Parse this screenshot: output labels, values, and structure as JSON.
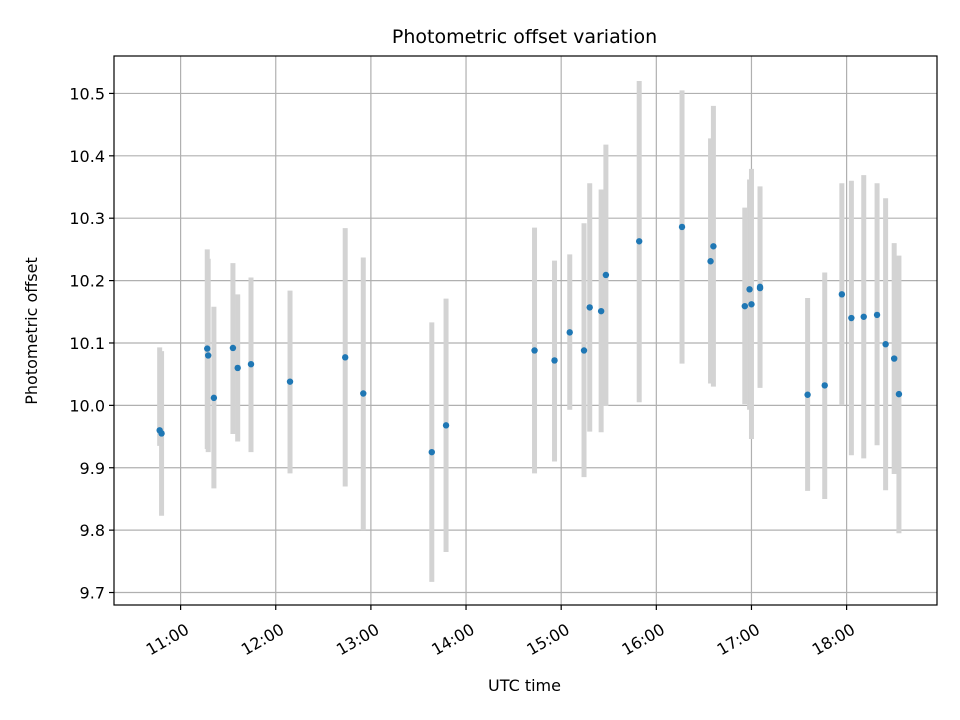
{
  "chart_data": {
    "type": "scatter",
    "title": "Photometric offset variation",
    "xlabel": "UTC time",
    "ylabel": "Photometric offset",
    "x_unit": "hour (UTC)",
    "xlim": [
      10.3,
      18.95
    ],
    "ylim": [
      9.68,
      10.56
    ],
    "x_ticks": [
      11,
      12,
      13,
      14,
      15,
      16,
      17,
      18
    ],
    "x_tick_labels": [
      "11:00",
      "12:00",
      "13:00",
      "14:00",
      "15:00",
      "16:00",
      "17:00",
      "18:00"
    ],
    "y_ticks": [
      9.7,
      9.8,
      9.9,
      10.0,
      10.1,
      10.2,
      10.3,
      10.4,
      10.5
    ],
    "y_tick_labels": [
      "9.7",
      "9.8",
      "9.9",
      "10.0",
      "10.1",
      "10.2",
      "10.3",
      "10.4",
      "10.5"
    ],
    "grid": true,
    "errorbar_color": "#d3d3d3",
    "point_color": "#1f77b4",
    "points": [
      {
        "x": 10.78,
        "y": 9.96,
        "yerr_low": 9.935,
        "yerr_high": 10.093
      },
      {
        "x": 10.8,
        "y": 9.955,
        "yerr_low": 9.823,
        "yerr_high": 10.087
      },
      {
        "x": 11.28,
        "y": 10.091,
        "yerr_low": 9.93,
        "yerr_high": 10.25
      },
      {
        "x": 11.29,
        "y": 10.08,
        "yerr_low": 9.925,
        "yerr_high": 10.235
      },
      {
        "x": 11.35,
        "y": 10.012,
        "yerr_low": 9.867,
        "yerr_high": 10.158
      },
      {
        "x": 11.55,
        "y": 10.092,
        "yerr_low": 9.954,
        "yerr_high": 10.228
      },
      {
        "x": 11.6,
        "y": 10.06,
        "yerr_low": 9.942,
        "yerr_high": 10.178
      },
      {
        "x": 11.74,
        "y": 10.066,
        "yerr_low": 9.925,
        "yerr_high": 10.205
      },
      {
        "x": 12.15,
        "y": 10.038,
        "yerr_low": 9.891,
        "yerr_high": 10.184
      },
      {
        "x": 12.73,
        "y": 10.077,
        "yerr_low": 9.87,
        "yerr_high": 10.284
      },
      {
        "x": 12.92,
        "y": 10.019,
        "yerr_low": 9.8,
        "yerr_high": 10.237
      },
      {
        "x": 13.64,
        "y": 9.925,
        "yerr_low": 9.717,
        "yerr_high": 10.133
      },
      {
        "x": 13.79,
        "y": 9.968,
        "yerr_low": 9.765,
        "yerr_high": 10.171
      },
      {
        "x": 14.72,
        "y": 10.088,
        "yerr_low": 9.891,
        "yerr_high": 10.285
      },
      {
        "x": 14.93,
        "y": 10.072,
        "yerr_low": 9.91,
        "yerr_high": 10.232
      },
      {
        "x": 15.09,
        "y": 10.117,
        "yerr_low": 9.993,
        "yerr_high": 10.242
      },
      {
        "x": 15.24,
        "y": 10.088,
        "yerr_low": 9.885,
        "yerr_high": 10.292
      },
      {
        "x": 15.3,
        "y": 10.157,
        "yerr_low": 9.958,
        "yerr_high": 10.356
      },
      {
        "x": 15.42,
        "y": 10.151,
        "yerr_low": 9.957,
        "yerr_high": 10.346
      },
      {
        "x": 15.47,
        "y": 10.209,
        "yerr_low": 9.999,
        "yerr_high": 10.418
      },
      {
        "x": 15.82,
        "y": 10.263,
        "yerr_low": 10.005,
        "yerr_high": 10.52
      },
      {
        "x": 16.27,
        "y": 10.286,
        "yerr_low": 10.067,
        "yerr_high": 10.505
      },
      {
        "x": 16.57,
        "y": 10.231,
        "yerr_low": 10.035,
        "yerr_high": 10.428
      },
      {
        "x": 16.6,
        "y": 10.255,
        "yerr_low": 10.03,
        "yerr_high": 10.48
      },
      {
        "x": 16.93,
        "y": 10.159,
        "yerr_low": 10.002,
        "yerr_high": 10.317
      },
      {
        "x": 16.98,
        "y": 10.186,
        "yerr_low": 9.993,
        "yerr_high": 10.362
      },
      {
        "x": 17.0,
        "y": 10.162,
        "yerr_low": 9.946,
        "yerr_high": 10.379
      },
      {
        "x": 17.09,
        "y": 10.19,
        "yerr_low": 10.028,
        "yerr_high": 10.351
      },
      {
        "x": 17.09,
        "y": 10.188,
        "yerr_low": 10.03,
        "yerr_high": 10.347
      },
      {
        "x": 17.59,
        "y": 10.017,
        "yerr_low": 9.863,
        "yerr_high": 10.172
      },
      {
        "x": 17.77,
        "y": 10.032,
        "yerr_low": 9.85,
        "yerr_high": 10.213
      },
      {
        "x": 17.95,
        "y": 10.178,
        "yerr_low": 10.0,
        "yerr_high": 10.356
      },
      {
        "x": 18.05,
        "y": 10.14,
        "yerr_low": 9.92,
        "yerr_high": 10.36
      },
      {
        "x": 18.18,
        "y": 10.142,
        "yerr_low": 9.915,
        "yerr_high": 10.369
      },
      {
        "x": 18.32,
        "y": 10.145,
        "yerr_low": 9.936,
        "yerr_high": 10.356
      },
      {
        "x": 18.41,
        "y": 10.098,
        "yerr_low": 9.864,
        "yerr_high": 10.332
      },
      {
        "x": 18.5,
        "y": 10.075,
        "yerr_low": 9.89,
        "yerr_high": 10.26
      },
      {
        "x": 18.55,
        "y": 10.018,
        "yerr_low": 9.795,
        "yerr_high": 10.24
      }
    ]
  }
}
